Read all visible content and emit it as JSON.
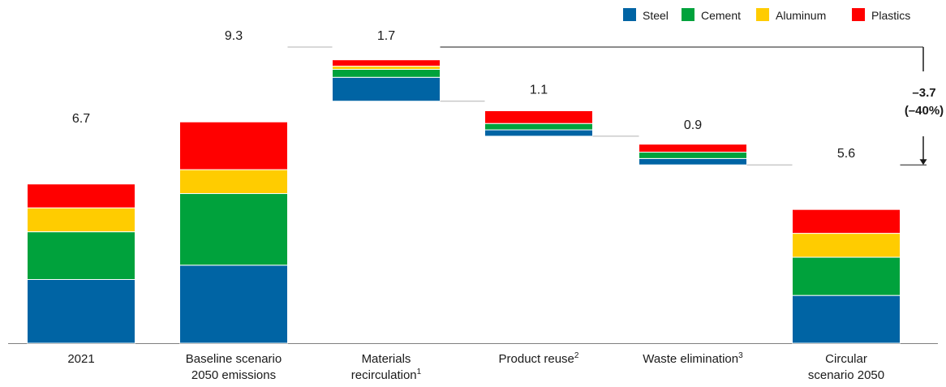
{
  "chart_data": {
    "type": "bar",
    "subtype": "stacked waterfall",
    "legend_position": "top-right",
    "series": [
      {
        "name": "Steel",
        "color": "#0064a4"
      },
      {
        "name": "Cement",
        "color": "#00a23c"
      },
      {
        "name": "Aluminum",
        "color": "#ffcc00"
      },
      {
        "name": "Plastics",
        "color": "#ff0000"
      }
    ],
    "categories": [
      {
        "lines": [
          "2021"
        ],
        "sup": "",
        "kind": "total",
        "total": 6.7,
        "total_label": "6.7",
        "segments": {
          "Steel": 2.0,
          "Cement": 1.5,
          "Aluminum": 0.75,
          "Plastics": 0.75
        }
      },
      {
        "lines": [
          "Baseline scenario",
          "2050 emissions"
        ],
        "sup": "",
        "kind": "total",
        "total": 9.3,
        "total_label": "9.3",
        "segments": {
          "Steel": 2.45,
          "Cement": 2.25,
          "Aluminum": 0.75,
          "Plastics": 1.5
        }
      },
      {
        "lines": [
          "Materials",
          "recirculation"
        ],
        "sup": "1",
        "kind": "reduction",
        "total": 1.7,
        "total_label": "1.7",
        "segments": {
          "Steel": 0.75,
          "Cement": 0.25,
          "Aluminum": 0.1,
          "Plastics": 0.2
        }
      },
      {
        "lines": [
          "Product reuse"
        ],
        "sup": "2",
        "kind": "reduction",
        "total": 1.1,
        "total_label": "1.1",
        "segments": {
          "Steel": 0.2,
          "Cement": 0.2,
          "Aluminum": 0.0,
          "Plastics": 0.4
        }
      },
      {
        "lines": [
          "Waste elimination"
        ],
        "sup": "3",
        "kind": "reduction",
        "total": 0.9,
        "total_label": "0.9",
        "segments": {
          "Steel": 0.2,
          "Cement": 0.2,
          "Aluminum": 0.0,
          "Plastics": 0.25
        }
      },
      {
        "lines": [
          "Circular",
          "scenario 2050"
        ],
        "sup": "",
        "kind": "total",
        "total": 5.6,
        "total_label": "5.6",
        "segments": {
          "Steel": 1.5,
          "Cement": 1.2,
          "Aluminum": 0.75,
          "Plastics": 0.75
        }
      }
    ],
    "annotation": {
      "lines": [
        "–3.7",
        "(–40%)"
      ],
      "value": -3.7,
      "percent": -40
    },
    "ylim": [
      0,
      9.3
    ],
    "title": "",
    "xlabel": "",
    "ylabel": ""
  }
}
